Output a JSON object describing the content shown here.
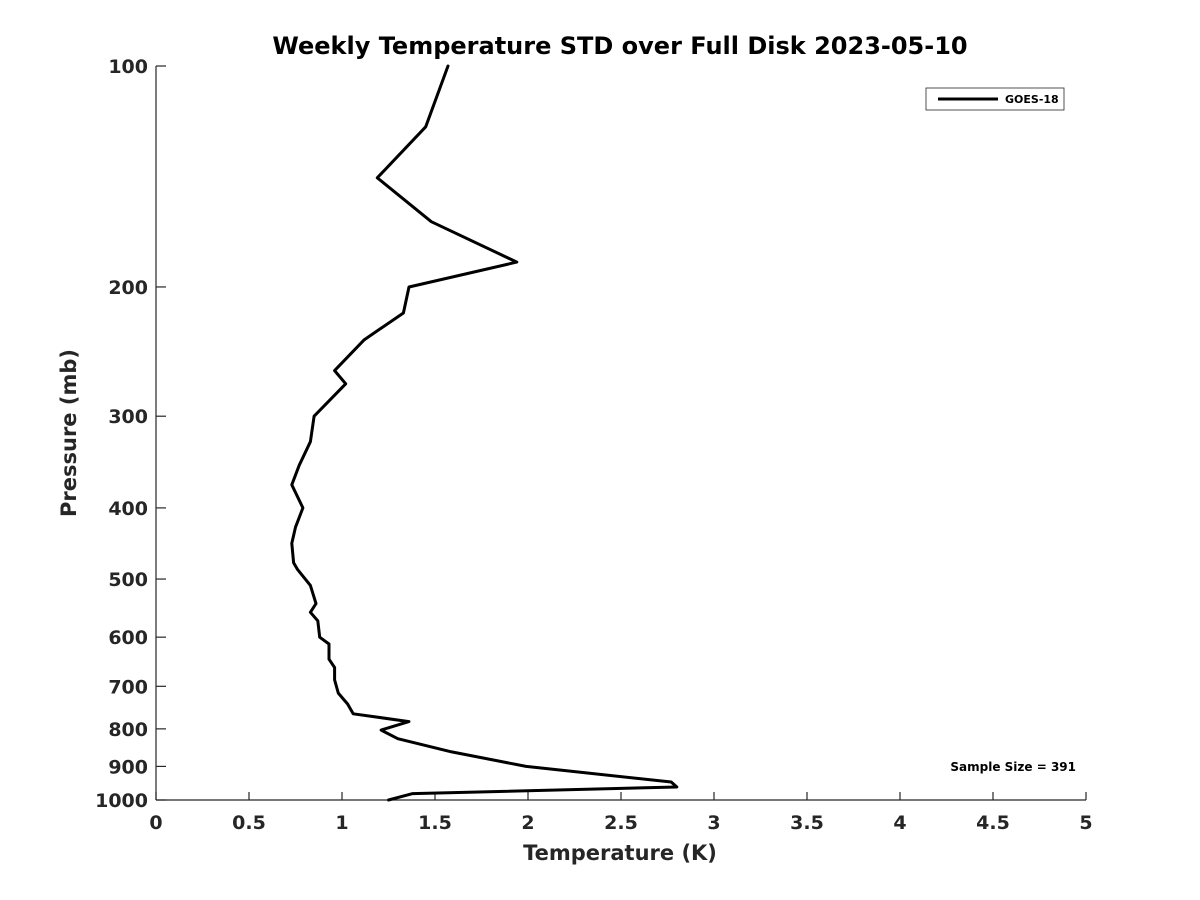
{
  "chart_data": {
    "type": "line",
    "title": "Weekly Temperature STD over Full Disk 2023-05-10",
    "xlabel": "Temperature (K)",
    "ylabel": "Pressure (mb)",
    "xlim": [
      0,
      5
    ],
    "ylim": [
      100,
      1000
    ],
    "y_scale": "log",
    "y_reversed": true,
    "grid": false,
    "legend_position": "top-right",
    "x_ticks": [
      0,
      0.5,
      1,
      1.5,
      2,
      2.5,
      3,
      3.5,
      4,
      4.5,
      5
    ],
    "x_tick_labels": [
      "0",
      "0.5",
      "1",
      "1.5",
      "2",
      "2.5",
      "3",
      "3.5",
      "4",
      "4.5",
      "5"
    ],
    "y_ticks": [
      100,
      200,
      300,
      400,
      500,
      600,
      700,
      800,
      900,
      1000
    ],
    "y_tick_labels": [
      "100",
      "200",
      "300",
      "400",
      "500",
      "600",
      "700",
      "800",
      "900",
      "1000"
    ],
    "series": [
      {
        "name": "GOES-18",
        "color": "#000000",
        "points": [
          [
            1.57,
            100
          ],
          [
            1.45,
            121
          ],
          [
            1.19,
            142
          ],
          [
            1.48,
            163
          ],
          [
            1.94,
            185
          ],
          [
            1.36,
            200
          ],
          [
            1.33,
            217
          ],
          [
            1.12,
            236
          ],
          [
            0.96,
            260
          ],
          [
            1.02,
            271
          ],
          [
            0.85,
            300
          ],
          [
            0.83,
            325
          ],
          [
            0.77,
            350
          ],
          [
            0.73,
            372
          ],
          [
            0.79,
            400
          ],
          [
            0.75,
            425
          ],
          [
            0.73,
            447
          ],
          [
            0.74,
            475
          ],
          [
            0.76,
            485
          ],
          [
            0.83,
            510
          ],
          [
            0.86,
            540
          ],
          [
            0.83,
            555
          ],
          [
            0.87,
            570
          ],
          [
            0.88,
            600
          ],
          [
            0.93,
            613
          ],
          [
            0.93,
            643
          ],
          [
            0.96,
            660
          ],
          [
            0.96,
            686
          ],
          [
            0.98,
            715
          ],
          [
            1.03,
            740
          ],
          [
            1.06,
            763
          ],
          [
            1.36,
            782
          ],
          [
            1.21,
            803
          ],
          [
            1.3,
            825
          ],
          [
            1.59,
            860
          ],
          [
            1.99,
            900
          ],
          [
            2.77,
            945
          ],
          [
            2.8,
            960
          ],
          [
            1.38,
            980
          ],
          [
            1.25,
            1000
          ]
        ]
      }
    ],
    "annotations": [
      "Sample Size = 391"
    ]
  }
}
